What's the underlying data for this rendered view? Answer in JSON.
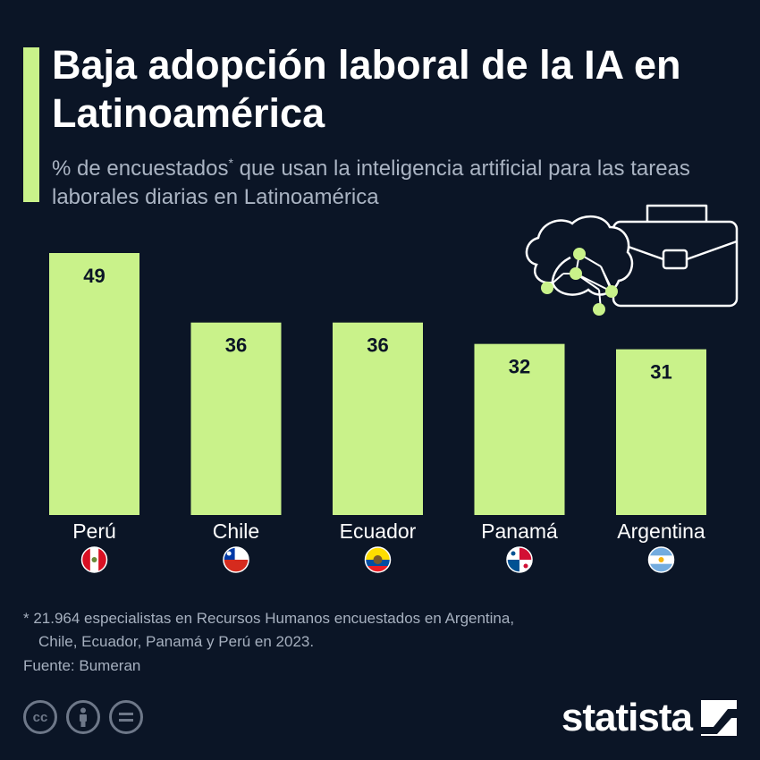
{
  "header": {
    "title": "Baja adopción laboral de la IA en Latinoamérica",
    "subtitle_part1": "% de encuestados",
    "subtitle_mark": "*",
    "subtitle_part2": " que usan la inteligencia artificial para las tareas laborales diarias en Latinoamérica"
  },
  "chart_data": {
    "type": "bar",
    "title": "Baja adopción laboral de la IA en Latinoamérica",
    "categories": [
      "Perú",
      "Chile",
      "Ecuador",
      "Panamá",
      "Argentina"
    ],
    "values": [
      49,
      36,
      36,
      32,
      31
    ],
    "ylim": [
      0,
      50
    ],
    "xlabel": "",
    "ylabel": "% de encuestados",
    "data_labels": true,
    "grid": false,
    "bar_color": "#c9f28a"
  },
  "footnote": {
    "line1": "* 21.964 especialistas en Recursos Humanos encuestados en Argentina,",
    "line2": "Chile, Ecuador, Panamá y Perú en 2023."
  },
  "source": "Fuente: Bumeran",
  "license_icons": [
    "cc-icon",
    "by-icon",
    "nd-icon"
  ],
  "brand": {
    "name": "statista"
  },
  "colors": {
    "background": "#0b1526",
    "accent": "#c9f28a",
    "text": "#ffffff",
    "muted": "#aab4c3"
  }
}
